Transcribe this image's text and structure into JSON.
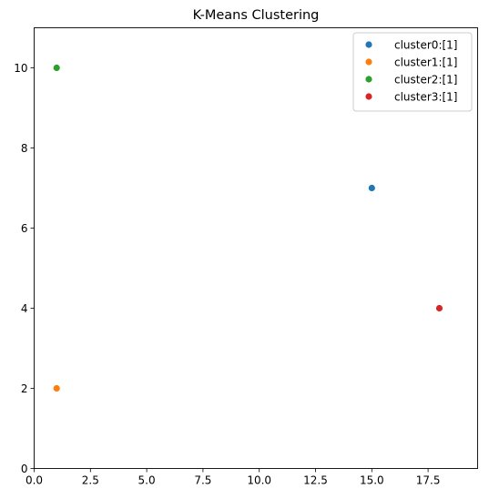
{
  "chart_data": {
    "type": "scatter",
    "title": "K-Means Clustering",
    "xlabel": "",
    "ylabel": "",
    "xlim": [
      0,
      19.7
    ],
    "ylim": [
      0,
      11
    ],
    "xticks": [
      0,
      2.5,
      5,
      7.5,
      10,
      12.5,
      15,
      17.5
    ],
    "xtick_labels": [
      "0.0",
      "2.5",
      "5.0",
      "7.5",
      "10.0",
      "12.5",
      "15.0",
      "17.5"
    ],
    "yticks": [
      0,
      2,
      4,
      6,
      8,
      10
    ],
    "ytick_labels": [
      "0",
      "2",
      "4",
      "6",
      "8",
      "10"
    ],
    "grid": false,
    "legend_position": "top-right",
    "series": [
      {
        "name": "cluster0:[1]",
        "color": "#1f77b4",
        "points": [
          {
            "x": 15,
            "y": 7
          }
        ]
      },
      {
        "name": "cluster1:[1]",
        "color": "#ff7f0e",
        "points": [
          {
            "x": 1,
            "y": 2
          }
        ]
      },
      {
        "name": "cluster2:[1]",
        "color": "#2ca02c",
        "points": [
          {
            "x": 1,
            "y": 10
          }
        ]
      },
      {
        "name": "cluster3:[1]",
        "color": "#d62728",
        "points": [
          {
            "x": 18,
            "y": 4
          }
        ]
      }
    ]
  }
}
